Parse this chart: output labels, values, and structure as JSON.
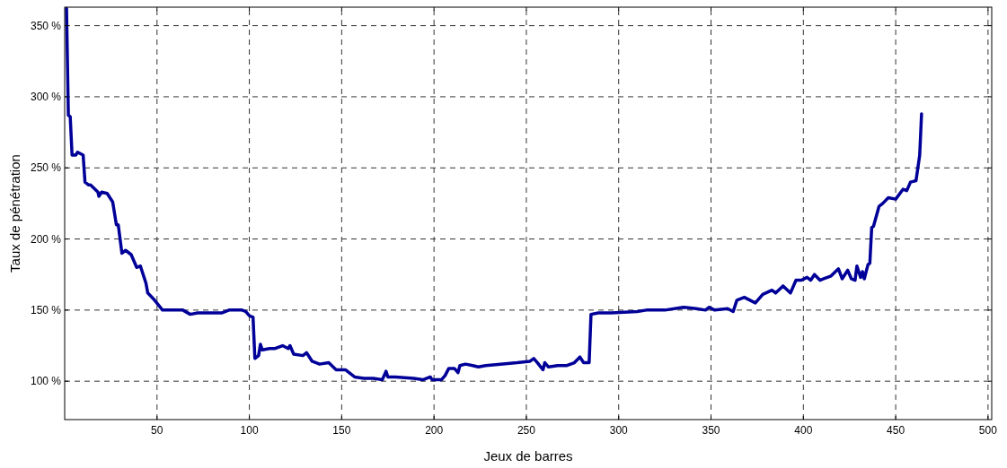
{
  "chart_data": {
    "type": "line",
    "xlabel": "Jeux de barres",
    "ylabel": "Taux de pénétration",
    "xlim": [
      0,
      502
    ],
    "ylim": [
      73,
      363
    ],
    "xticks": [
      50,
      100,
      150,
      200,
      250,
      300,
      350,
      400,
      450,
      500
    ],
    "yticks": [
      {
        "value": 100,
        "label": "100 %"
      },
      {
        "value": 150,
        "label": "150 %"
      },
      {
        "value": 200,
        "label": "200 %"
      },
      {
        "value": 250,
        "label": "250 %"
      },
      {
        "value": 300,
        "label": "300 %"
      },
      {
        "value": 350,
        "label": "350 %"
      }
    ],
    "grid": true,
    "marker": "none",
    "line_style": "solid",
    "series": [
      {
        "color": "#000099",
        "x": [
          1,
          2,
          3,
          4,
          6,
          7,
          10,
          11,
          13,
          14,
          18,
          18.5,
          20,
          23,
          26,
          28,
          29,
          31,
          33,
          36,
          39,
          41,
          44,
          45,
          48,
          53,
          56,
          62,
          64,
          68,
          72,
          77,
          85,
          89,
          96,
          98,
          100,
          102,
          103,
          105,
          106,
          107,
          111,
          114,
          118,
          121,
          122,
          124,
          129,
          131,
          134,
          138,
          143,
          147,
          152,
          157,
          162,
          167,
          172,
          174,
          175,
          179,
          189,
          194,
          198,
          199,
          204,
          206,
          208,
          211,
          213,
          214,
          217,
          221,
          224,
          228,
          236,
          245,
          252,
          254,
          256,
          259,
          260,
          262,
          267,
          272,
          276,
          279,
          281,
          284,
          285,
          289,
          296,
          310,
          315,
          325,
          335,
          342,
          347,
          349,
          352,
          359,
          362,
          364,
          368,
          374,
          378,
          383,
          385,
          389,
          393,
          396,
          399,
          402,
          404,
          406,
          409,
          411,
          415,
          419,
          421,
          424,
          426,
          428,
          429,
          431,
          432,
          433,
          435,
          436,
          437,
          438,
          441,
          443,
          446,
          450,
          454,
          456,
          458,
          461,
          463,
          464
        ],
        "values": [
          362,
          287,
          286,
          259,
          259,
          261,
          259,
          240,
          238,
          238,
          233,
          230,
          233,
          232,
          226,
          210,
          210,
          190,
          192,
          189,
          180,
          181,
          169,
          162,
          158,
          150,
          150,
          150,
          150,
          147,
          148,
          148,
          148,
          150,
          150,
          149,
          146,
          145,
          116,
          118,
          126,
          122,
          123,
          123,
          125,
          123,
          125,
          119,
          118,
          120,
          114,
          112,
          113,
          108,
          108,
          103,
          102,
          102,
          101,
          107,
          103,
          103,
          102,
          101,
          103,
          101,
          101,
          104,
          109,
          109,
          106,
          111,
          112,
          111,
          110,
          111,
          112,
          113,
          114,
          116,
          113,
          108,
          113,
          110,
          111,
          111,
          113,
          117,
          113,
          113,
          147,
          148,
          148,
          149,
          150,
          150,
          152,
          151,
          150,
          152,
          150,
          151,
          149,
          157,
          159,
          155,
          161,
          164,
          162,
          167,
          162,
          171,
          171,
          173,
          171,
          175,
          171,
          172,
          174,
          179,
          172,
          178,
          172,
          171,
          181,
          173,
          177,
          172,
          182,
          183,
          208,
          209,
          223,
          225,
          229,
          228,
          235,
          234,
          240,
          241,
          259,
          288
        ]
      }
    ]
  }
}
